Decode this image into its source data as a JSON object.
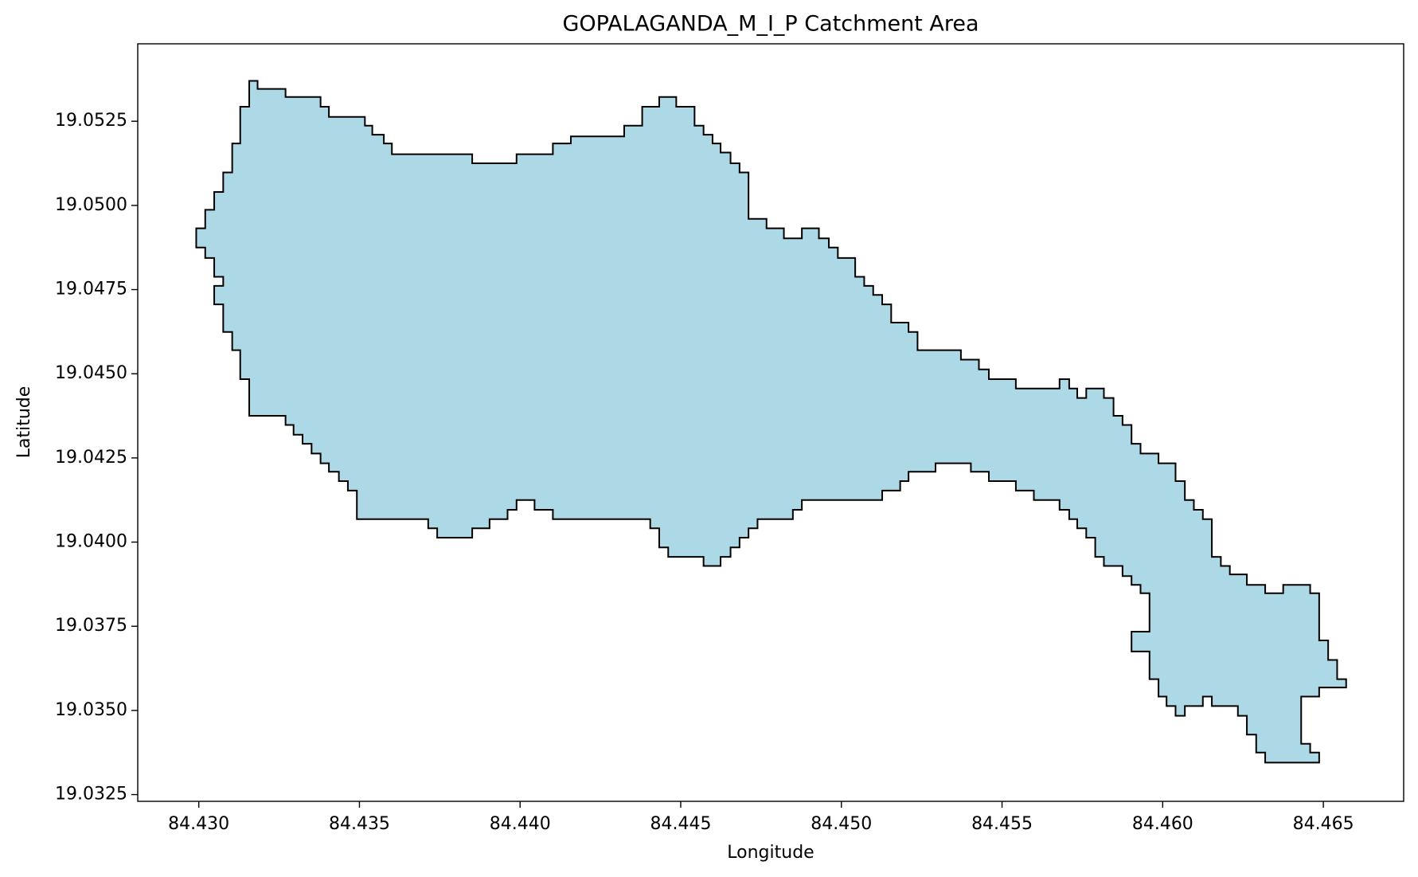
{
  "chart_data": {
    "type": "polygon",
    "title": "GOPALAGANDA_M_I_P Catchment Area",
    "x_label": "Longitude",
    "y_label": "Latitude",
    "fill_color": "#add8e6",
    "edge_color": "#000000",
    "xlim": [
      84.4281,
      84.4675
    ],
    "ylim": [
      19.0323,
      19.0548
    ],
    "xticks": [
      {
        "value": 84.43,
        "label": "84.430"
      },
      84.435,
      {
        "value": 84.44,
        "label": "84.440"
      },
      84.445,
      {
        "value": 84.45,
        "label": "84.450"
      },
      84.455,
      {
        "value": 84.46,
        "label": "84.460"
      },
      84.465
    ],
    "yticks": [
      19.0325,
      {
        "value": 19.035,
        "label": "19.0350"
      },
      19.0375,
      {
        "value": 19.04,
        "label": "19.0400"
      },
      19.0425,
      {
        "value": 19.045,
        "label": "19.0450"
      },
      19.0475,
      {
        "value": 19.05,
        "label": "19.0500"
      },
      19.0525
    ],
    "x": [
      84.43157,
      84.43183,
      84.43183,
      84.4327,
      84.4327,
      84.43379,
      84.43379,
      84.43405,
      84.43405,
      84.43517,
      84.43517,
      84.4354,
      84.4354,
      84.43576,
      84.43576,
      84.43601,
      84.43601,
      84.43851,
      84.43851,
      84.43989,
      84.43989,
      84.44102,
      84.44102,
      84.44158,
      84.44158,
      84.44324,
      84.44324,
      84.4438,
      84.4438,
      84.44433,
      84.44433,
      84.44486,
      84.44486,
      84.44543,
      84.44543,
      84.44571,
      84.44571,
      84.44599,
      84.44599,
      84.44624,
      84.44624,
      84.44655,
      84.44655,
      84.44683,
      84.44683,
      84.44711,
      84.44711,
      84.44767,
      84.44767,
      84.44821,
      84.44821,
      84.44877,
      84.44877,
      84.4493,
      84.4493,
      84.44961,
      84.44961,
      84.44989,
      84.44989,
      84.45043,
      84.45043,
      84.45071,
      84.45071,
      84.45099,
      84.45099,
      84.45127,
      84.45127,
      84.45155,
      84.45155,
      84.45209,
      84.45209,
      84.45237,
      84.45237,
      84.45372,
      84.45372,
      84.45428,
      84.45428,
      84.45459,
      84.45459,
      84.45543,
      84.45543,
      84.45679,
      84.45679,
      84.45709,
      84.45709,
      84.45734,
      84.45734,
      84.45762,
      84.45762,
      84.45817,
      84.45817,
      84.45847,
      84.45847,
      84.45875,
      84.45875,
      84.45903,
      84.45903,
      84.45931,
      84.45931,
      84.45987,
      84.45987,
      84.4604,
      84.4604,
      84.46069,
      84.46069,
      84.46097,
      84.46097,
      84.46125,
      84.46125,
      84.46153,
      84.46153,
      84.46181,
      84.46181,
      84.46209,
      84.46209,
      84.46262,
      84.46262,
      84.46319,
      84.46319,
      84.46375,
      84.46375,
      84.46459,
      84.46459,
      84.46487,
      84.46487,
      84.46515,
      84.46515,
      84.46543,
      84.46543,
      84.46571,
      84.46571,
      84.46487,
      84.46487,
      84.46431,
      84.46431,
      84.46459,
      84.46459,
      84.46487,
      84.46487,
      84.46319,
      84.46319,
      84.46291,
      84.46291,
      84.46262,
      84.46262,
      84.46234,
      84.46234,
      84.46153,
      84.46153,
      84.46125,
      84.46125,
      84.46069,
      84.46069,
      84.4604,
      84.4604,
      84.46012,
      84.46012,
      84.45987,
      84.45987,
      84.45959,
      84.45959,
      84.45903,
      84.45903,
      84.45959,
      84.45959,
      84.45931,
      84.45931,
      84.45903,
      84.45903,
      84.45875,
      84.45875,
      84.45817,
      84.45817,
      84.4579,
      84.4579,
      84.45762,
      84.45762,
      84.45734,
      84.45734,
      84.45709,
      84.45709,
      84.45679,
      84.45679,
      84.45599,
      84.45599,
      84.45543,
      84.45543,
      84.45459,
      84.45459,
      84.45403,
      84.45403,
      84.45293,
      84.45293,
      84.45209,
      84.45209,
      84.45183,
      84.45183,
      84.45127,
      84.45127,
      84.44877,
      84.44877,
      84.44849,
      84.44849,
      84.44739,
      84.44739,
      84.44711,
      84.44711,
      84.44683,
      84.44683,
      84.44655,
      84.44655,
      84.44624,
      84.44624,
      84.44571,
      84.44571,
      84.44461,
      84.44461,
      84.44433,
      84.44433,
      84.44405,
      84.44405,
      84.44102,
      84.44102,
      84.44045,
      84.44045,
      84.43989,
      84.43989,
      84.43961,
      84.43961,
      84.43905,
      84.43905,
      84.43851,
      84.43851,
      84.43742,
      84.43742,
      84.43714,
      84.43714,
      84.43492,
      84.43492,
      84.43464,
      84.43464,
      84.43436,
      84.43436,
      84.43405,
      84.43405,
      84.43379,
      84.43379,
      84.43351,
      84.43351,
      84.43323,
      84.43323,
      84.43295,
      84.43295,
      84.4327,
      84.4327,
      84.43157,
      84.43157,
      84.43129,
      84.43129,
      84.43104,
      84.43104,
      84.43076,
      84.43076,
      84.43048,
      84.43048,
      84.43076,
      84.43076,
      84.43048,
      84.43048,
      84.4302,
      84.4302,
      84.42992,
      84.42992,
      84.4302,
      84.4302,
      84.43048,
      84.43048,
      84.43076,
      84.43076,
      84.43104,
      84.43104,
      84.43129,
      84.43129,
      84.43157
    ],
    "y": [
      19.0537,
      19.0537,
      19.05346,
      19.05346,
      19.05322,
      19.05322,
      19.05293,
      19.05293,
      19.05263,
      19.05263,
      19.05237,
      19.05237,
      19.0521,
      19.0521,
      19.05184,
      19.05184,
      19.05152,
      19.05152,
      19.05125,
      19.05125,
      19.05152,
      19.05152,
      19.05184,
      19.05184,
      19.05205,
      19.05205,
      19.05237,
      19.05237,
      19.05293,
      19.05293,
      19.05322,
      19.05322,
      19.05293,
      19.05293,
      19.05237,
      19.05237,
      19.0521,
      19.0521,
      19.05184,
      19.05184,
      19.05157,
      19.05157,
      19.05125,
      19.05125,
      19.05098,
      19.05098,
      19.0496,
      19.0496,
      19.04932,
      19.04932,
      19.04902,
      19.04902,
      19.04932,
      19.04932,
      19.04902,
      19.04902,
      19.04875,
      19.04875,
      19.04844,
      19.04844,
      19.04788,
      19.04788,
      19.04761,
      19.04761,
      19.04734,
      19.04734,
      19.04706,
      19.04706,
      19.04652,
      19.04652,
      19.04624,
      19.04624,
      19.0457,
      19.0457,
      19.04542,
      19.04542,
      19.04513,
      19.04513,
      19.04484,
      19.04484,
      19.04456,
      19.04456,
      19.04484,
      19.04484,
      19.04456,
      19.04456,
      19.04428,
      19.04428,
      19.04456,
      19.04456,
      19.04428,
      19.04428,
      19.04375,
      19.04375,
      19.04348,
      19.04348,
      19.04292,
      19.04292,
      19.04263,
      19.04263,
      19.04234,
      19.04234,
      19.04181,
      19.04181,
      19.04125,
      19.04125,
      19.04096,
      19.04096,
      19.04068,
      19.04068,
      19.03956,
      19.03956,
      19.03929,
      19.03929,
      19.03904,
      19.03904,
      19.03873,
      19.03873,
      19.03848,
      19.03848,
      19.03873,
      19.03873,
      19.03848,
      19.03848,
      19.03708,
      19.03708,
      19.0365,
      19.0365,
      19.03593,
      19.03593,
      19.03568,
      19.03568,
      19.03541,
      19.03541,
      19.03401,
      19.03401,
      19.03375,
      19.03375,
      19.03345,
      19.03345,
      19.03375,
      19.03375,
      19.03428,
      19.03428,
      19.03484,
      19.03484,
      19.03513,
      19.03513,
      19.03541,
      19.03541,
      19.03513,
      19.03513,
      19.03484,
      19.03484,
      19.03513,
      19.03513,
      19.03541,
      19.03541,
      19.03593,
      19.03593,
      19.03675,
      19.03675,
      19.03734,
      19.03734,
      19.03848,
      19.03848,
      19.03873,
      19.03873,
      19.03899,
      19.03899,
      19.03929,
      19.03929,
      19.03956,
      19.03956,
      19.04013,
      19.04013,
      19.04041,
      19.04041,
      19.04068,
      19.04068,
      19.04096,
      19.04096,
      19.04125,
      19.04125,
      19.04153,
      19.04153,
      19.04181,
      19.04181,
      19.04209,
      19.04209,
      19.04234,
      19.04234,
      19.04209,
      19.04209,
      19.04181,
      19.04181,
      19.04153,
      19.04153,
      19.04125,
      19.04125,
      19.04096,
      19.04096,
      19.04068,
      19.04068,
      19.04041,
      19.04041,
      19.04013,
      19.04013,
      19.03984,
      19.03984,
      19.03956,
      19.03956,
      19.03929,
      19.03929,
      19.03956,
      19.03956,
      19.03984,
      19.03984,
      19.04041,
      19.04041,
      19.04068,
      19.04068,
      19.04096,
      19.04096,
      19.04125,
      19.04125,
      19.04096,
      19.04096,
      19.04068,
      19.04068,
      19.04041,
      19.04041,
      19.04013,
      19.04013,
      19.04041,
      19.04041,
      19.04068,
      19.04068,
      19.04153,
      19.04153,
      19.04181,
      19.04181,
      19.04209,
      19.04209,
      19.04234,
      19.04234,
      19.04263,
      19.04263,
      19.04292,
      19.04292,
      19.04319,
      19.04319,
      19.04348,
      19.04348,
      19.04375,
      19.04375,
      19.04484,
      19.04484,
      19.0457,
      19.0457,
      19.04624,
      19.04624,
      19.04706,
      19.04706,
      19.04761,
      19.04761,
      19.04788,
      19.04788,
      19.04844,
      19.04844,
      19.04875,
      19.04875,
      19.04932,
      19.04932,
      19.04987,
      19.04987,
      19.0504,
      19.0504,
      19.05098,
      19.05098,
      19.05184,
      19.05184,
      19.05293,
      19.05293
    ]
  }
}
